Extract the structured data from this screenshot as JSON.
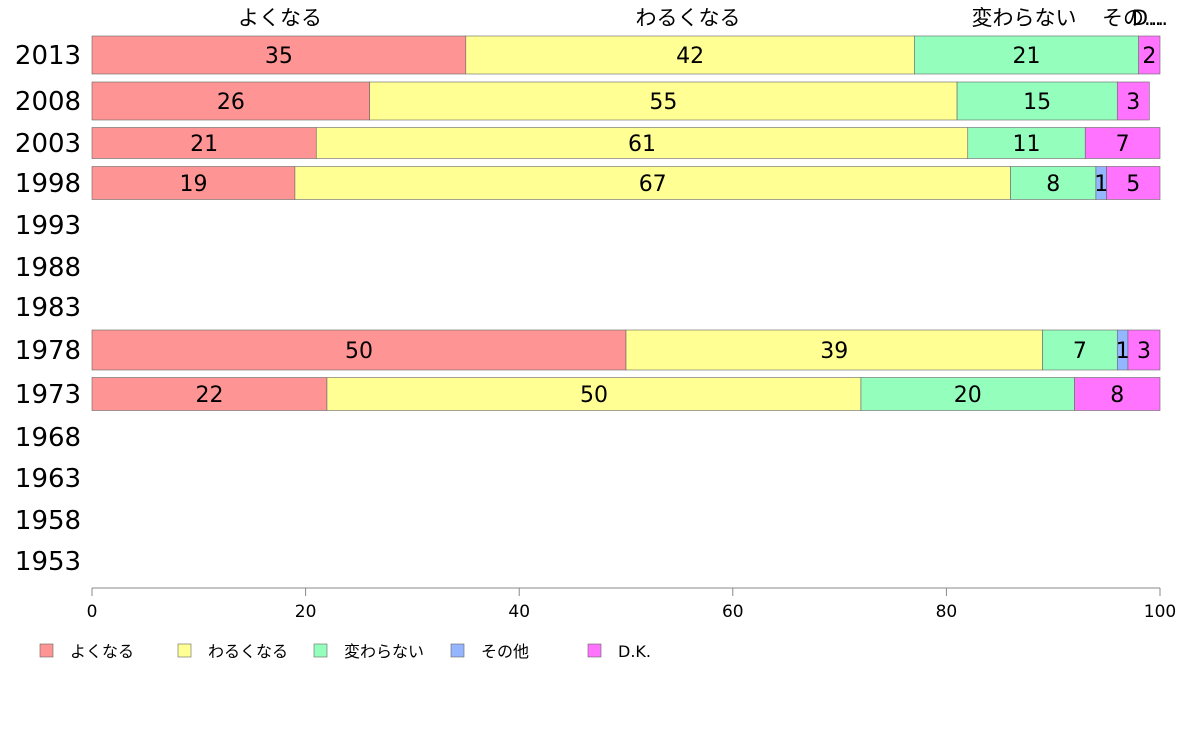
{
  "chart_data": {
    "type": "bar",
    "orientation": "horizontal",
    "stacked": true,
    "categories": [
      "2013",
      "2008",
      "2003",
      "1998",
      "1993",
      "1988",
      "1983",
      "1978",
      "1973",
      "1968",
      "1963",
      "1958",
      "1953"
    ],
    "series": [
      {
        "name": "よくなる",
        "color": "#ff9494",
        "values": [
          35,
          26,
          21,
          19,
          null,
          null,
          null,
          50,
          22,
          null,
          null,
          null,
          null
        ]
      },
      {
        "name": "わるくなる",
        "color": "#ffff94",
        "values": [
          42,
          55,
          61,
          67,
          null,
          null,
          null,
          39,
          50,
          null,
          null,
          null,
          null
        ]
      },
      {
        "name": "変わらない",
        "color": "#94ffbd",
        "values": [
          21,
          15,
          11,
          8,
          null,
          null,
          null,
          7,
          20,
          null,
          null,
          null,
          null
        ]
      },
      {
        "name": "その他",
        "color": "#94b5ff",
        "values": [
          0,
          0,
          0,
          1,
          null,
          null,
          null,
          1,
          0,
          null,
          null,
          null,
          null
        ]
      },
      {
        "name": "D.K.",
        "color": "#ff73ff",
        "values": [
          2,
          3,
          7,
          5,
          null,
          null,
          null,
          3,
          8,
          null,
          null,
          null,
          null
        ]
      }
    ],
    "data_labels": [
      [
        "35",
        "42",
        "21",
        "",
        "2"
      ],
      [
        "26",
        "55",
        "15",
        "",
        "3"
      ],
      [
        "21",
        "61",
        "11",
        "",
        "7"
      ],
      [
        "19",
        "67",
        "8",
        "1",
        "5"
      ],
      null,
      null,
      null,
      [
        "50",
        "39",
        "7",
        "1",
        "3"
      ],
      [
        "22",
        "50",
        "20",
        "",
        "8"
      ],
      null,
      null,
      null,
      null
    ],
    "top_labels": [
      "よくなる",
      "わるくなる",
      "変わらない",
      "その...",
      "D..."
    ],
    "xlim": [
      0,
      100
    ],
    "xticks": [
      "0",
      "20",
      "40",
      "60",
      "80",
      "100"
    ],
    "grid": false,
    "legend_position": "bottom"
  }
}
